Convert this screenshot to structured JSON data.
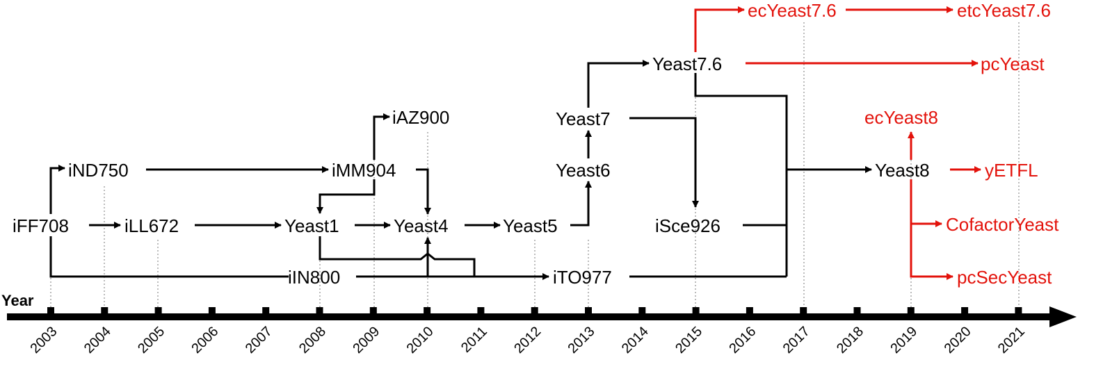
{
  "axis": {
    "title": "Year",
    "years": [
      "2003",
      "2004",
      "2005",
      "2006",
      "2007",
      "2008",
      "2009",
      "2010",
      "2011",
      "2012",
      "2013",
      "2014",
      "2015",
      "2016",
      "2017",
      "2018",
      "2019",
      "2020",
      "2021"
    ]
  },
  "models": {
    "iFF708": "iFF708",
    "iND750": "iND750",
    "iLL672": "iLL672",
    "iMM904": "iMM904",
    "iAZ900": "iAZ900",
    "Yeast1": "Yeast1",
    "Yeast4": "Yeast4",
    "Yeast5": "Yeast5",
    "iIN800": "iIN800",
    "Yeast6": "Yeast6",
    "Yeast7": "Yeast7",
    "iTO977": "iTO977",
    "Yeast7_6": "Yeast7.6",
    "iSce926": "iSce926",
    "ecYeast7_6": "ecYeast7.6",
    "etcYeast7_6": "etcYeast7.6",
    "pcYeast": "pcYeast",
    "ecYeast8": "ecYeast8",
    "Yeast8": "Yeast8",
    "yETFL": "yETFL",
    "CofactorYeast": "CofactorYeast",
    "pcSecYeast": "pcSecYeast"
  },
  "colors": {
    "original": "#000000",
    "derived": "#e3120b"
  }
}
